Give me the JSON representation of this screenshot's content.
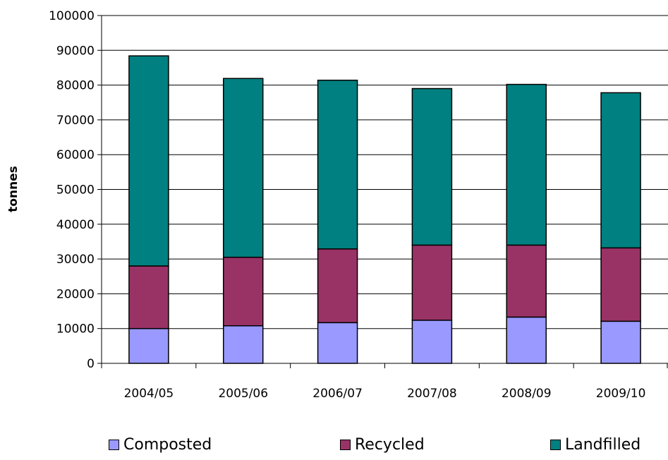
{
  "chart_data": {
    "type": "bar",
    "stacked": true,
    "categories": [
      "2004/05",
      "2005/06",
      "2006/07",
      "2007/08",
      "2008/09",
      "2009/10"
    ],
    "series": [
      {
        "name": "Composted",
        "color": "#9999FF",
        "values": [
          10000,
          10800,
          11700,
          12400,
          13300,
          12100
        ]
      },
      {
        "name": "Recycled",
        "color": "#993366",
        "values": [
          18000,
          19700,
          21200,
          21600,
          20700,
          21100
        ]
      },
      {
        "name": "Landfilled",
        "color": "#008080",
        "values": [
          60400,
          51400,
          48500,
          45000,
          46200,
          44600
        ]
      }
    ],
    "title": "",
    "xlabel": "",
    "ylabel": "tonnes",
    "ylim": [
      0,
      100000
    ],
    "yticks": [
      0,
      10000,
      20000,
      30000,
      40000,
      50000,
      60000,
      70000,
      80000,
      90000,
      100000
    ],
    "grid": true,
    "legend_position": "bottom"
  }
}
